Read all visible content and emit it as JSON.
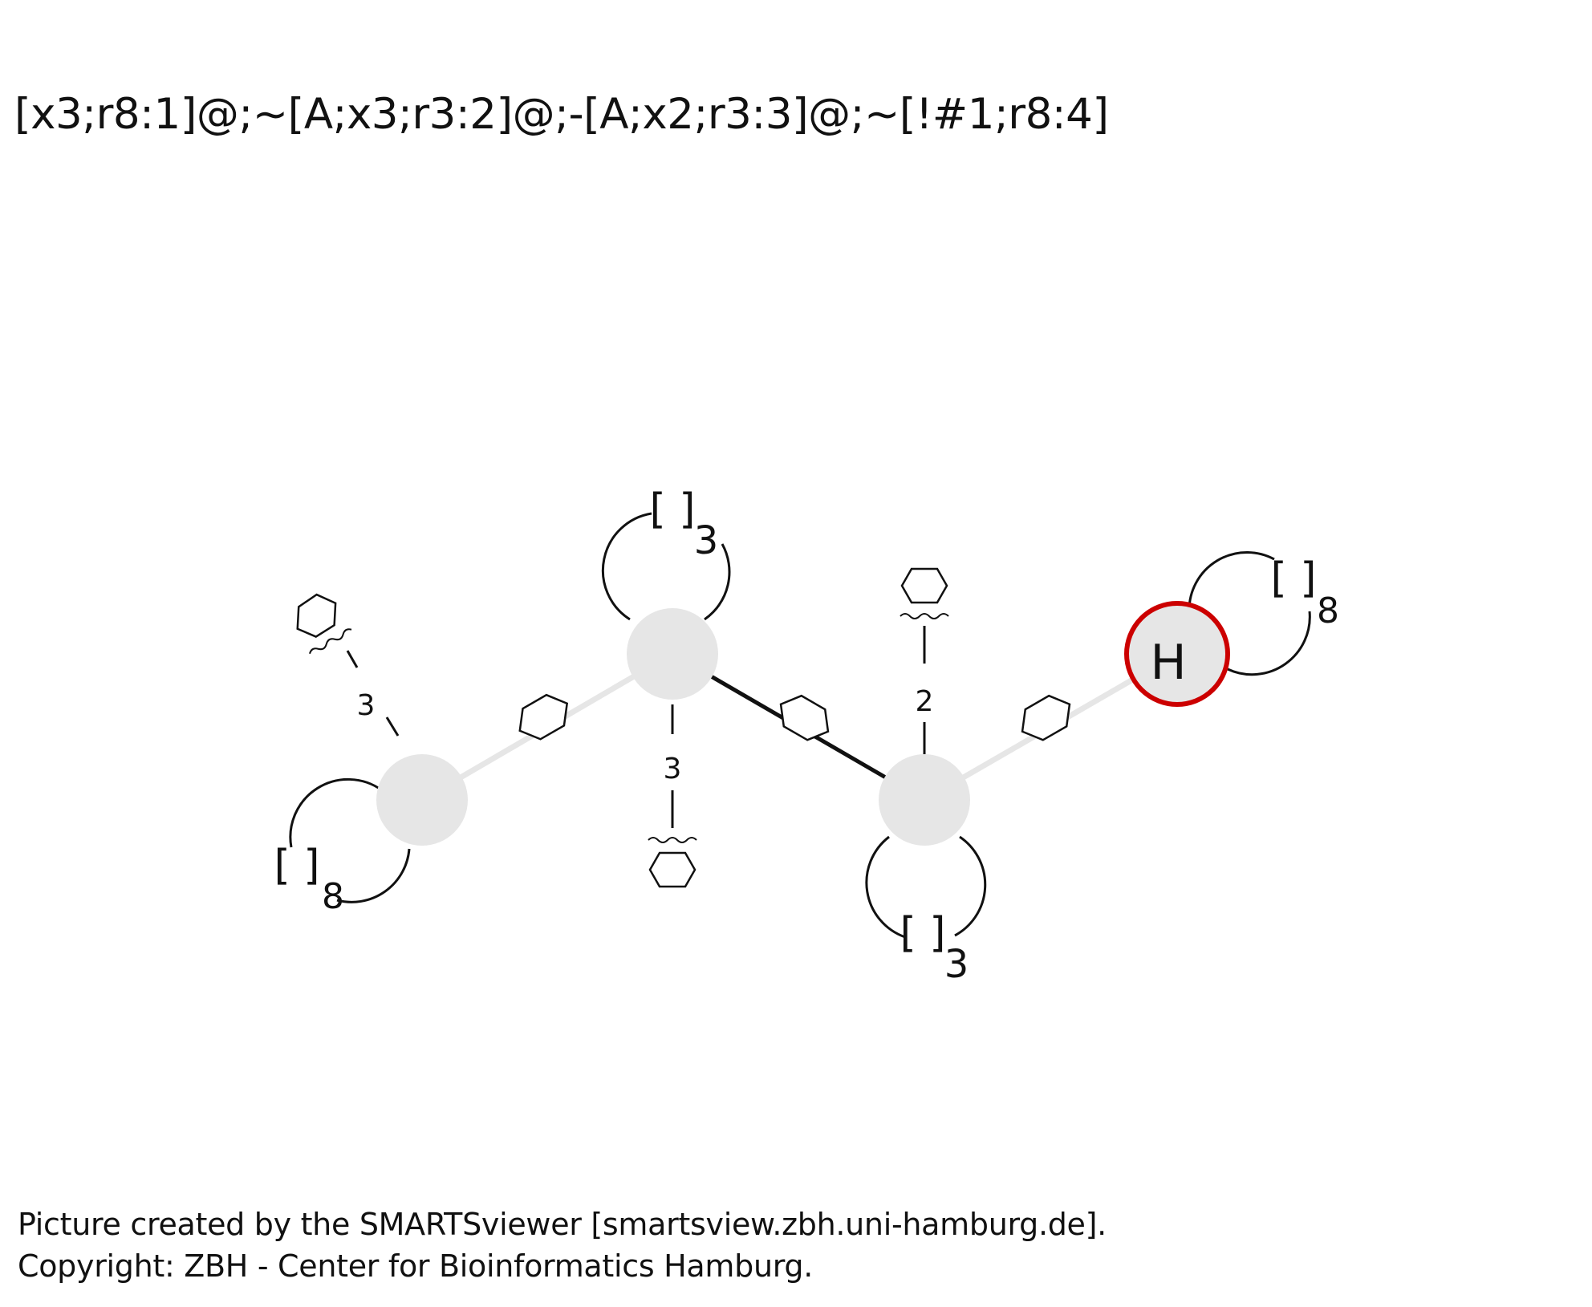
{
  "smarts": "[x3;r8:1]@;~[A;x3;r3:2]@;-[A;x2;r3:3]@;~[!#1;r8:4]",
  "atoms": [
    {
      "id": 1,
      "symbol": "",
      "ring_label": "[ ]",
      "ring_size": "8"
    },
    {
      "id": 2,
      "symbol": "",
      "ring_label": "[ ]",
      "ring_size": "3"
    },
    {
      "id": 3,
      "symbol": "",
      "ring_label": "[ ]",
      "ring_size": "3"
    },
    {
      "id": 4,
      "symbol": "H",
      "ring_label": "[ ]",
      "ring_size": "8",
      "negated": true
    }
  ],
  "bonds": [
    {
      "from": 1,
      "to": 2,
      "type": "any-ring"
    },
    {
      "from": 2,
      "to": 3,
      "type": "single-ring"
    },
    {
      "from": 3,
      "to": 4,
      "type": "any-ring"
    }
  ],
  "connectivity": [
    {
      "atom": 1,
      "count": "3"
    },
    {
      "atom": 2,
      "count": "3"
    },
    {
      "atom": 3,
      "count": "2"
    }
  ],
  "colors": {
    "atom_fill": "#e6e6e6",
    "negation": "#cc0000",
    "line": "#111111",
    "bond_any": "#e6e6e6"
  },
  "footer": {
    "line1": "Picture created by the SMARTSviewer [smartsview.zbh.uni-hamburg.de].",
    "line2": "Copyright: ZBH - Center for Bioinformatics Hamburg."
  }
}
